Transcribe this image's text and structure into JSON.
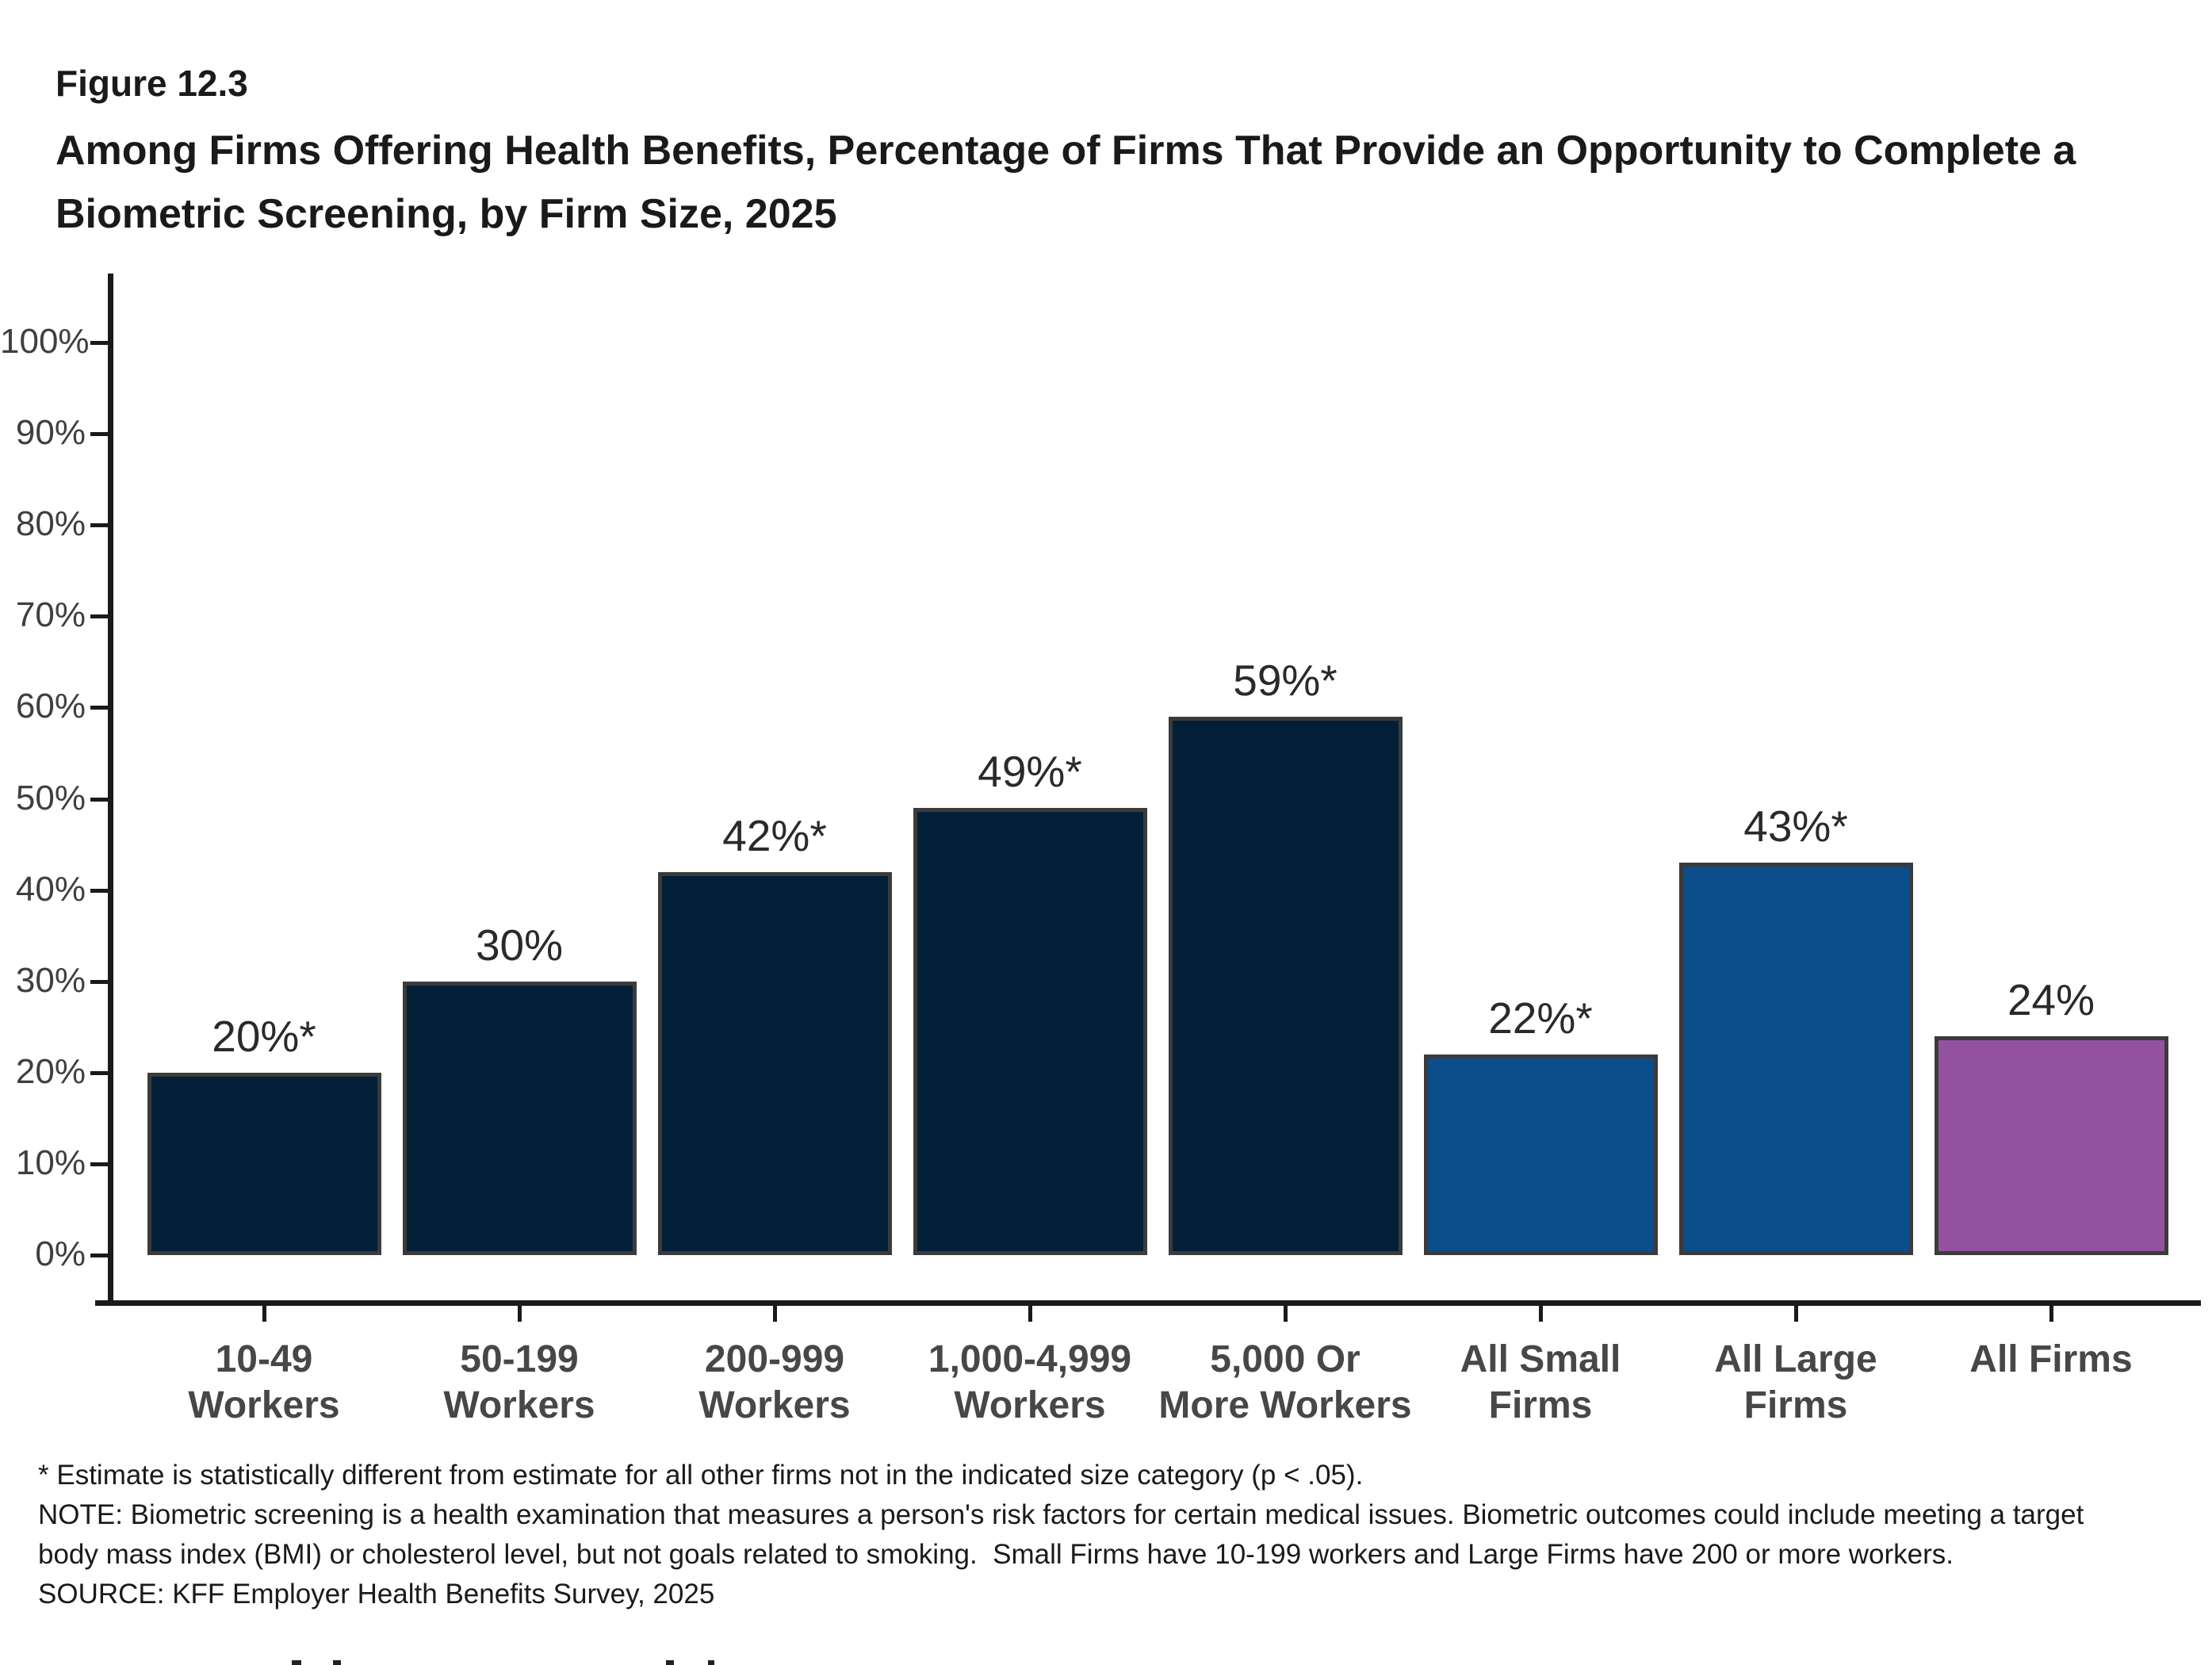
{
  "header": {
    "figure_label": "Figure 12.3",
    "title": "Among Firms Offering Health Benefits, Percentage of Firms That Provide an Opportunity to Complete a Biometric Screening, by Firm Size, 2025"
  },
  "chart_data": {
    "type": "bar",
    "title": "Among Firms Offering Health Benefits, Percentage of Firms That Provide an Opportunity to Complete a Biometric Screening, by Firm Size, 2025",
    "categories": [
      "10-49 Workers",
      "50-199 Workers",
      "200-999 Workers",
      "1,000-4,999 Workers",
      "5,000 Or More Workers",
      "All Small Firms",
      "All Large Firms",
      "All Firms"
    ],
    "category_lines": [
      [
        "10-49",
        "Workers"
      ],
      [
        "50-199",
        "Workers"
      ],
      [
        "200-999",
        "Workers"
      ],
      [
        "1,000-4,999",
        "Workers"
      ],
      [
        "5,000 Or",
        "More Workers"
      ],
      [
        "All Small",
        "Firms"
      ],
      [
        "All Large",
        "Firms"
      ],
      [
        "All Firms"
      ]
    ],
    "values": [
      20,
      30,
      42,
      49,
      59,
      22,
      43,
      24
    ],
    "value_labels": [
      "20%*",
      "30%",
      "42%*",
      "49%*",
      "59%*",
      "22%*",
      "43%*",
      "24%"
    ],
    "bar_colors": [
      "#031f38",
      "#031f38",
      "#031f38",
      "#031f38",
      "#031f38",
      "#0b4d8a",
      "#0b4d8a",
      "#9351a0"
    ],
    "bar_border_color": "#3b3b3b",
    "xlabel": "",
    "ylabel": "",
    "ylim": [
      0,
      100
    ],
    "ytick_labels": [
      "0%",
      "10%",
      "20%",
      "30%",
      "40%",
      "50%",
      "60%",
      "70%",
      "80%",
      "90%",
      "100%"
    ],
    "grid": false,
    "legend": null
  },
  "colors": {
    "dark_navy": "#031f38",
    "medium_blue": "#0b4d8a",
    "purple": "#9351a0",
    "axis": "#1a1a1a",
    "tick_label_gray": "#3f3f3f",
    "category_label_gray": "#474747"
  },
  "footnotes": {
    "significance": "* Estimate is statistically different from estimate for all other firms not in the indicated size category (p < .05).",
    "note": "NOTE: Biometric screening is a health examination that measures a person's risk factors for certain medical issues. Biometric outcomes could include meeting a target body mass index (BMI) or cholesterol level, but not goals related to smoking.  Small Firms have 10-199 workers and Large Firms have 200 or more workers.",
    "source": "SOURCE: KFF Employer Health Benefits Survey, 2025"
  }
}
